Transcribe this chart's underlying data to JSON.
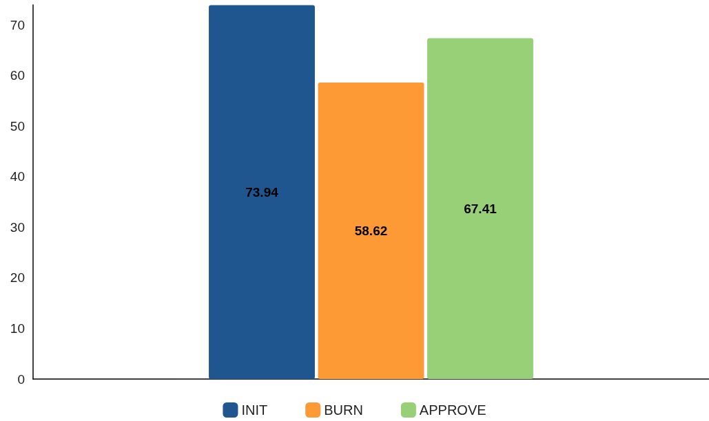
{
  "chart_data": {
    "type": "bar",
    "categories": [
      null
    ],
    "series": [
      {
        "name": "INIT",
        "color": "#1f568f",
        "values": [
          73.94
        ]
      },
      {
        "name": "BURN",
        "color": "#fd9a35",
        "values": [
          58.62
        ]
      },
      {
        "name": "APPROVE",
        "color": "#98d078",
        "values": [
          67.41
        ]
      }
    ],
    "ylim": [
      0,
      74
    ],
    "yticks": [
      0,
      10,
      20,
      30,
      40,
      50,
      60,
      70
    ],
    "grid": false,
    "legend": "bottom",
    "data_labels": true
  }
}
